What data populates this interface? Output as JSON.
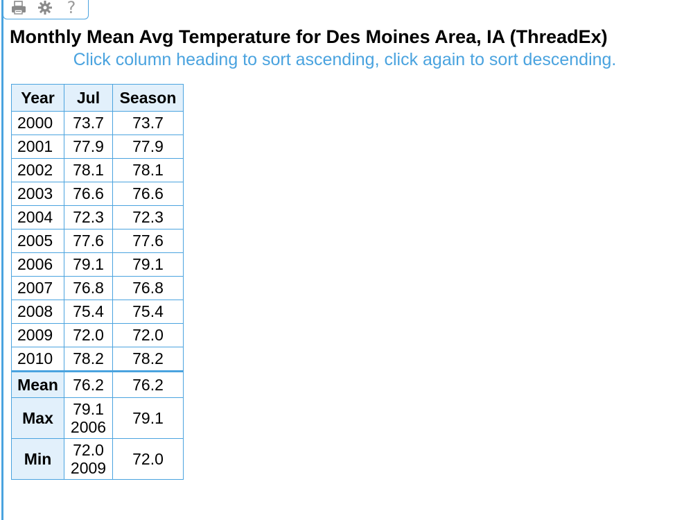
{
  "header": {
    "title": "Monthly Mean Avg Temperature for Des Moines Area, IA (ThreadEx)",
    "instruction": "Click column heading to sort ascending, click again to sort descending."
  },
  "toolbar": {
    "icons": [
      "print-icon",
      "gear-icon",
      "help-icon"
    ],
    "help_glyph": "?"
  },
  "table": {
    "columns": [
      "Year",
      "Jul",
      "Season"
    ],
    "rows": [
      {
        "year": "2000",
        "jul": "73.7",
        "season": "73.7"
      },
      {
        "year": "2001",
        "jul": "77.9",
        "season": "77.9"
      },
      {
        "year": "2002",
        "jul": "78.1",
        "season": "78.1"
      },
      {
        "year": "2003",
        "jul": "76.6",
        "season": "76.6"
      },
      {
        "year": "2004",
        "jul": "72.3",
        "season": "72.3"
      },
      {
        "year": "2005",
        "jul": "77.6",
        "season": "77.6"
      },
      {
        "year": "2006",
        "jul": "79.1",
        "season": "79.1"
      },
      {
        "year": "2007",
        "jul": "76.8",
        "season": "76.8"
      },
      {
        "year": "2008",
        "jul": "75.4",
        "season": "75.4"
      },
      {
        "year": "2009",
        "jul": "72.0",
        "season": "72.0"
      },
      {
        "year": "2010",
        "jul": "78.2",
        "season": "78.2"
      }
    ],
    "summary": {
      "mean": {
        "label": "Mean",
        "jul": "76.2",
        "season": "76.2"
      },
      "max": {
        "label": "Max",
        "jul": "79.1",
        "jul_year": "2006",
        "season": "79.1"
      },
      "min": {
        "label": "Min",
        "jul": "72.0",
        "jul_year": "2009",
        "season": "72.0"
      }
    }
  },
  "colors": {
    "accent": "#4aa3df",
    "header_bg": "#e2f0fb",
    "icon_gray": "#8a8a8a"
  }
}
